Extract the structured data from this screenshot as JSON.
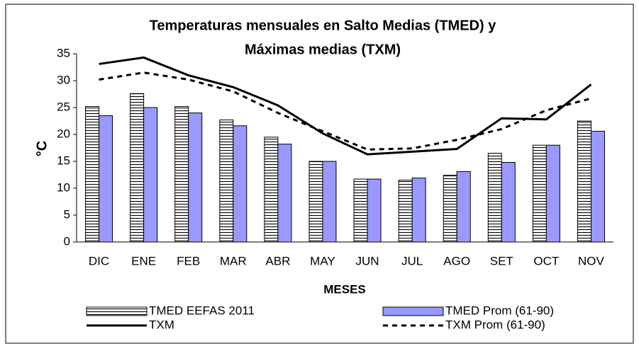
{
  "chart_data": {
    "type": "bar",
    "title": [
      "Temperaturas mensuales en Salto Medias (TMED) y",
      "Máximas medias (TXM)"
    ],
    "x_label": "MESES",
    "y_label": "°C",
    "categories": [
      "DIC",
      "ENE",
      "FEB",
      "MAR",
      "ABR",
      "MAY",
      "JUN",
      "JUL",
      "AGO",
      "SET",
      "OCT",
      "NOV"
    ],
    "series": [
      {
        "name": "TMED EEFAS 2011",
        "kind": "bar",
        "style": "hatch",
        "color": "#000000",
        "values": [
          25.2,
          27.6,
          25.2,
          22.7,
          19.5,
          15.0,
          11.7,
          11.5,
          12.4,
          16.5,
          18.0,
          22.5
        ]
      },
      {
        "name": "TMED Prom (61-90)",
        "kind": "bar",
        "style": "solid",
        "color": "#9999ff",
        "values": [
          23.5,
          25.0,
          24.0,
          21.6,
          18.2,
          15.0,
          11.7,
          11.9,
          13.1,
          14.8,
          18.0,
          20.6
        ]
      },
      {
        "name": "TXM",
        "kind": "line",
        "style": "solid",
        "color": "#000000",
        "values": [
          33.1,
          34.3,
          31.0,
          28.8,
          25.4,
          20.2,
          16.3,
          16.8,
          17.3,
          23.0,
          22.8,
          29.3
        ]
      },
      {
        "name": "TXM Prom (61-90)",
        "kind": "line",
        "style": "dashed",
        "color": "#000000",
        "values": [
          30.2,
          31.5,
          30.2,
          28.0,
          24.0,
          20.6,
          17.2,
          17.4,
          19.0,
          21.0,
          24.5,
          26.7
        ]
      }
    ],
    "ylim": [
      0,
      35
    ],
    "yticks": [
      0,
      5,
      10,
      15,
      20,
      25,
      30,
      35
    ],
    "grid": false
  }
}
